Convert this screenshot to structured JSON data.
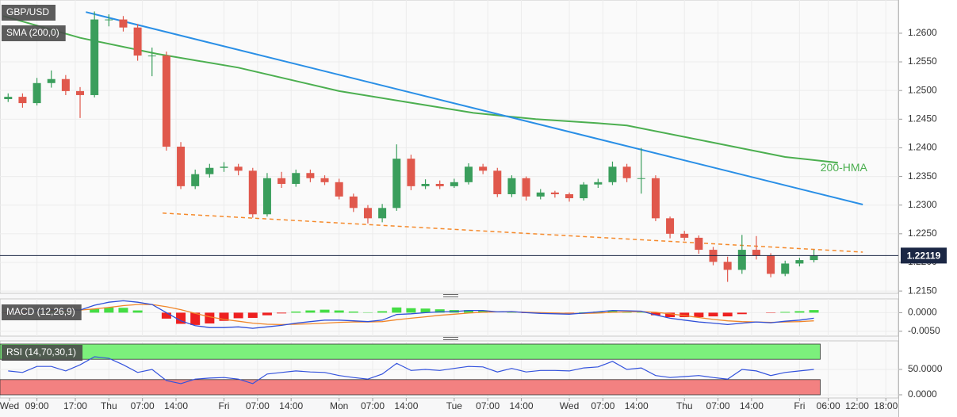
{
  "chart_data": [
    {
      "type": "candlestick",
      "title": "GBP/USD",
      "x": [
        3,
        6,
        9,
        12,
        15,
        18,
        21,
        24,
        27,
        30,
        33,
        36,
        39,
        42,
        45,
        48,
        51,
        54,
        57,
        60,
        63,
        66,
        69,
        72,
        75,
        78,
        81,
        84,
        87,
        90,
        93,
        96,
        99,
        102,
        105,
        108,
        111,
        114,
        117,
        120,
        123,
        126,
        129,
        132,
        135,
        138,
        141,
        144,
        147,
        150,
        153,
        156,
        159,
        162,
        165,
        168,
        171
      ],
      "open": [
        1.2485,
        1.2489,
        1.2478,
        1.2513,
        1.252,
        1.2499,
        1.2492,
        1.2624,
        1.2624,
        1.261,
        1.2561,
        1.2561,
        1.2402,
        1.2333,
        1.2354,
        1.2365,
        1.2367,
        1.236,
        1.2284,
        1.2347,
        1.2337,
        1.2356,
        1.2347,
        1.234,
        1.2315,
        1.2295,
        1.2277,
        1.2295,
        1.2381,
        1.2333,
        1.2337,
        1.2333,
        1.234,
        1.2367,
        1.236,
        1.2319,
        1.2347,
        1.2315,
        1.2322,
        1.2319,
        1.2312,
        1.2336,
        1.234,
        1.2367,
        1.2347,
        1.2347,
        1.2277,
        1.225,
        1.2243,
        1.2222,
        1.2201,
        1.2187,
        1.2222,
        1.2212,
        1.218,
        1.2198,
        1.2204
      ],
      "high": [
        1.2495,
        1.2495,
        1.2522,
        1.2535,
        1.2527,
        1.2506,
        1.2638,
        1.2633,
        1.263,
        1.2616,
        1.2575,
        1.2568,
        1.241,
        1.2362,
        1.2372,
        1.2375,
        1.2372,
        1.2365,
        1.2356,
        1.2358,
        1.2362,
        1.2362,
        1.2352,
        1.2346,
        1.232,
        1.23,
        1.2302,
        1.2406,
        1.2388,
        1.2345,
        1.2343,
        1.2346,
        1.2373,
        1.2372,
        1.2365,
        1.2352,
        1.235,
        1.2328,
        1.2325,
        1.2322,
        1.234,
        1.2346,
        1.2376,
        1.2372,
        1.24,
        1.2352,
        1.228,
        1.2255,
        1.2247,
        1.2227,
        1.221,
        1.2248,
        1.2246,
        1.2216,
        1.2203,
        1.2208,
        1.2222
      ],
      "low": [
        1.248,
        1.247,
        1.2474,
        1.2505,
        1.2492,
        1.2452,
        1.2488,
        1.2612,
        1.2603,
        1.2552,
        1.2525,
        1.2395,
        1.2328,
        1.2328,
        1.2348,
        1.2358,
        1.2352,
        1.2278,
        1.228,
        1.233,
        1.2332,
        1.234,
        1.2335,
        1.231,
        1.2288,
        1.2268,
        1.227,
        1.229,
        1.2326,
        1.2328,
        1.2328,
        1.233,
        1.2336,
        1.2354,
        1.2314,
        1.2314,
        1.2308,
        1.231,
        1.2313,
        1.2306,
        1.2308,
        1.233,
        1.2335,
        1.234,
        1.232,
        1.2272,
        1.2242,
        1.2238,
        1.2215,
        1.2195,
        1.2166,
        1.218,
        1.2205,
        1.2174,
        1.2176,
        1.2193,
        1.22
      ],
      "close": [
        1.2489,
        1.2478,
        1.2513,
        1.252,
        1.2499,
        1.2492,
        1.2624,
        1.2624,
        1.261,
        1.2561,
        1.2561,
        1.2402,
        1.2333,
        1.2354,
        1.2365,
        1.2367,
        1.236,
        1.2284,
        1.2347,
        1.2337,
        1.2356,
        1.2347,
        1.234,
        1.2315,
        1.2295,
        1.2277,
        1.2295,
        1.2381,
        1.2333,
        1.2337,
        1.2333,
        1.234,
        1.2367,
        1.236,
        1.2319,
        1.2347,
        1.2315,
        1.2322,
        1.2319,
        1.2312,
        1.2336,
        1.234,
        1.2367,
        1.2347,
        1.2347,
        1.2277,
        1.225,
        1.2243,
        1.2222,
        1.2201,
        1.2187,
        1.2222,
        1.2212,
        1.218,
        1.2198,
        1.2204,
        1.2212
      ],
      "up_color": "#3a9e5c",
      "down_color": "#e0584c",
      "series": [
        {
          "name": "SMA (200,0)",
          "color": "#4caf50",
          "x": [
            2,
            18,
            34,
            51,
            72,
            100,
            113,
            126,
            132,
            150,
            165,
            176
          ],
          "values": [
            1.263,
            1.2592,
            1.2564,
            1.254,
            1.2499,
            1.2461,
            1.245,
            1.2443,
            1.2439,
            1.2409,
            1.2384,
            1.2374
          ]
        }
      ],
      "annotation": "200-HMA",
      "trendlines": [
        {
          "color": "#2a8fe6",
          "dashed": false,
          "x": [
            19.2,
            181.2
          ],
          "values": [
            1.2637,
            1.2301
          ]
        },
        {
          "color": "#f5892a",
          "dashed": true,
          "x": [
            35.2,
            181.2
          ],
          "values": [
            1.2286,
            1.2218
          ]
        }
      ],
      "last_price": 1.22119,
      "last_price_color": "#1b2744",
      "xlim": [
        1.3,
        188.6
      ],
      "xticks": [
        {
          "value": 0,
          "label": "Wed"
        },
        {
          "value": 9,
          "label": "09:00"
        },
        {
          "value": 17,
          "label": "17:00"
        },
        {
          "value": 24,
          "label": "Thu"
        },
        {
          "value": 31,
          "label": "07:00"
        },
        {
          "value": 38,
          "label": "14:00"
        },
        {
          "value": 48,
          "label": "Fri"
        },
        {
          "value": 55,
          "label": "07:00"
        },
        {
          "value": 62,
          "label": "14:00"
        },
        {
          "value": 72,
          "label": "Mon"
        },
        {
          "value": 79,
          "label": "07:00"
        },
        {
          "value": 86,
          "label": "14:00"
        },
        {
          "value": 96,
          "label": "Tue"
        },
        {
          "value": 103,
          "label": "07:00"
        },
        {
          "value": 110,
          "label": "14:00"
        },
        {
          "value": 120,
          "label": "Wed"
        },
        {
          "value": 127,
          "label": "07:00"
        },
        {
          "value": 134,
          "label": "14:00"
        },
        {
          "value": 144,
          "label": "Thu"
        },
        {
          "value": 151,
          "label": "07:00"
        },
        {
          "value": 158,
          "label": "14:00"
        },
        {
          "value": 168,
          "label": "Fri"
        },
        {
          "value": 174,
          "label": "06:00"
        },
        {
          "value": 180,
          "label": "12:00"
        },
        {
          "value": 186,
          "label": "18:00"
        }
      ],
      "ylim": [
        1.2146,
        1.2658
      ],
      "yticks": [
        {
          "value": 1.215,
          "label": "1.2150"
        },
        {
          "value": 1.22,
          "label": "1.2200"
        },
        {
          "value": 1.225,
          "label": "1.2250"
        },
        {
          "value": 1.23,
          "label": "1.2300"
        },
        {
          "value": 1.235,
          "label": "1.2350"
        },
        {
          "value": 1.24,
          "label": "1.2400"
        },
        {
          "value": 1.245,
          "label": "1.2450"
        },
        {
          "value": 1.25,
          "label": "1.2500"
        },
        {
          "value": 1.255,
          "label": "1.2550"
        },
        {
          "value": 1.26,
          "label": "1.2600"
        }
      ],
      "grid": true
    },
    {
      "type": "macd",
      "title": "MACD (12,26,9)",
      "macd": {
        "color": "#2f4fd8",
        "values": [
          0.0005,
          0.0003,
          0.0005,
          0.0008,
          0.0008,
          0.0007,
          0.002,
          0.0028,
          0.0032,
          0.0028,
          0.0022,
          0,
          -0.0022,
          -0.0035,
          -0.004,
          -0.004,
          -0.0038,
          -0.0042,
          -0.0038,
          -0.0034,
          -0.0028,
          -0.0024,
          -0.002,
          -0.002,
          -0.0022,
          -0.0024,
          -0.002,
          -0.0005,
          -0.0003,
          0,
          0.0002,
          0.0003,
          0.0006,
          0.0006,
          0.0002,
          0.0003,
          0,
          -0.0002,
          -0.0003,
          -0.0004,
          -0.0001,
          0.0002,
          0.0006,
          0.0005,
          0.0004,
          -0.0006,
          -0.0015,
          -0.002,
          -0.0025,
          -0.0028,
          -0.0032,
          -0.0028,
          -0.0025,
          -0.0027,
          -0.0023,
          -0.002,
          -0.0015
        ]
      },
      "signal": {
        "color": "#f0862a",
        "values": [
          0.0006,
          0.0005,
          0.0005,
          0.0006,
          0.0006,
          0.0007,
          0.001,
          0.0014,
          0.0019,
          0.0022,
          0.0022,
          0.0016,
          0.0008,
          -0.0002,
          -0.0011,
          -0.0018,
          -0.0023,
          -0.0028,
          -0.0031,
          -0.0032,
          -0.0031,
          -0.003,
          -0.0028,
          -0.0026,
          -0.0025,
          -0.0025,
          -0.0024,
          -0.0019,
          -0.0015,
          -0.0011,
          -0.0007,
          -0.0004,
          -0.0001,
          0.0001,
          0.0002,
          0.0002,
          0.0001,
          0,
          -0.0001,
          -0.0002,
          -0.0002,
          -0.0001,
          0.0001,
          0.0002,
          0.0003,
          0.0001,
          -0.0003,
          -0.0008,
          -0.0013,
          -0.0018,
          -0.0022,
          -0.0024,
          -0.0025,
          -0.0026,
          -0.0025,
          -0.0024,
          -0.0022
        ]
      },
      "histogram": {
        "up_color": "#44dd44",
        "down_color": "#ee2020",
        "values": [
          -0.0001,
          -0.0002,
          0,
          0.0002,
          0.0002,
          0,
          0.001,
          0.0014,
          0.0013,
          0.0006,
          0,
          -0.0016,
          -0.003,
          -0.0033,
          -0.0029,
          -0.0022,
          -0.0015,
          -0.0014,
          -0.0007,
          -0.0002,
          0.0003,
          0.0006,
          0.0008,
          0.0006,
          0.0003,
          0.0001,
          0.0004,
          0.0014,
          0.0012,
          0.0011,
          0.0009,
          0.0007,
          0.0007,
          0.0005,
          0,
          0.0001,
          -0.0001,
          -0.0002,
          -0.0002,
          -0.0002,
          0.0001,
          0.0003,
          0.0005,
          0.0003,
          0.0001,
          -0.0007,
          -0.0012,
          -0.0012,
          -0.0012,
          -0.001,
          -0.001,
          -0.0004,
          0,
          -0.0001,
          0.0002,
          0.0004,
          0.0007
        ]
      },
      "ylim": [
        -0.0063,
        0.0037
      ],
      "yticks": [
        {
          "value": 0,
          "label": "0.0000"
        },
        {
          "value": -0.005,
          "label": "-0.0050"
        }
      ],
      "grid": true
    },
    {
      "type": "rsi",
      "title": "RSI (14,70,30,1)",
      "color": "#3352dd",
      "values": [
        47,
        44,
        56,
        56,
        47,
        59,
        75,
        72,
        59,
        44,
        50,
        28,
        22,
        31,
        33,
        34,
        31,
        22,
        41,
        44,
        47,
        45,
        44,
        38,
        34,
        31,
        41,
        62,
        48,
        50,
        48,
        52,
        56,
        55,
        45,
        52,
        45,
        48,
        48,
        47,
        53,
        55,
        66,
        50,
        53,
        38,
        34,
        36,
        38,
        34,
        31,
        50,
        47,
        38,
        44,
        47,
        50
      ],
      "bands": [
        {
          "from": 70,
          "to": 100,
          "color": "#7cf07c"
        },
        {
          "from": 0,
          "to": 30,
          "color": "#f38181"
        }
      ],
      "ylim": [
        -6.25,
        106.25
      ],
      "yticks": [
        {
          "value": 50,
          "label": "50.0000"
        },
        {
          "value": 0,
          "label": "0.0000"
        }
      ],
      "grid": true
    }
  ]
}
